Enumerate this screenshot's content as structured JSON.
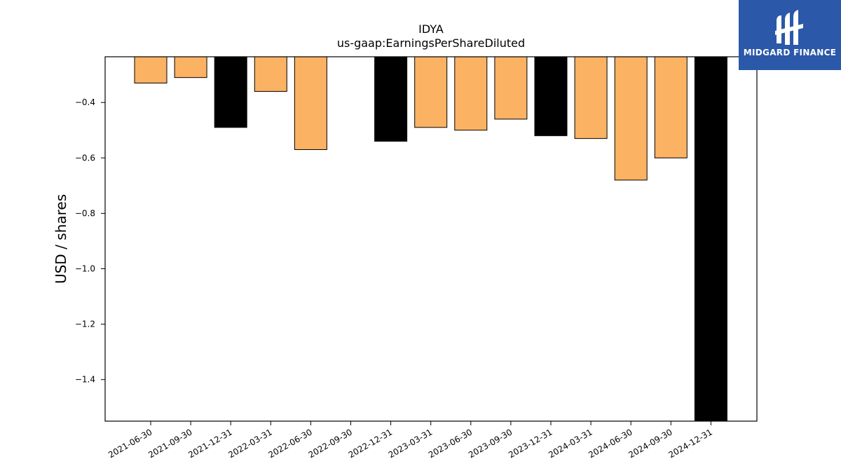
{
  "chart_data": {
    "type": "bar",
    "title": "IDYA",
    "subtitle": "us-gaap:EarningsPerShareDiluted",
    "ylabel": "USD / shares",
    "xlabel": "",
    "ylim": [
      -1.55,
      -0.235
    ],
    "yticks": [
      -0.4,
      -0.6,
      -0.8,
      -1.0,
      -1.2,
      -1.4
    ],
    "categories": [
      "2021-06-30",
      "2021-09-30",
      "2021-12-31",
      "2022-03-31",
      "2022-06-30",
      "2022-09-30",
      "2022-12-31",
      "2023-03-31",
      "2023-06-30",
      "2023-09-30",
      "2023-12-31",
      "2024-03-31",
      "2024-06-30",
      "2024-09-30",
      "2024-12-31"
    ],
    "values": [
      -0.33,
      -0.31,
      -0.49,
      -0.36,
      -0.57,
      null,
      -0.54,
      -0.49,
      -0.5,
      -0.46,
      -0.52,
      -0.53,
      -0.68,
      -0.6,
      -1.59
    ],
    "bar_colors": [
      "#fbb262",
      "#fbb262",
      "#000000",
      "#fbb262",
      "#fbb262",
      null,
      "#000000",
      "#fbb262",
      "#fbb262",
      "#fbb262",
      "#000000",
      "#fbb262",
      "#fbb262",
      "#fbb262",
      "#000000"
    ],
    "grid": false,
    "legend": "none"
  },
  "logo": {
    "text": "MIDGARD FINANCE",
    "color": "#2b58a8"
  }
}
